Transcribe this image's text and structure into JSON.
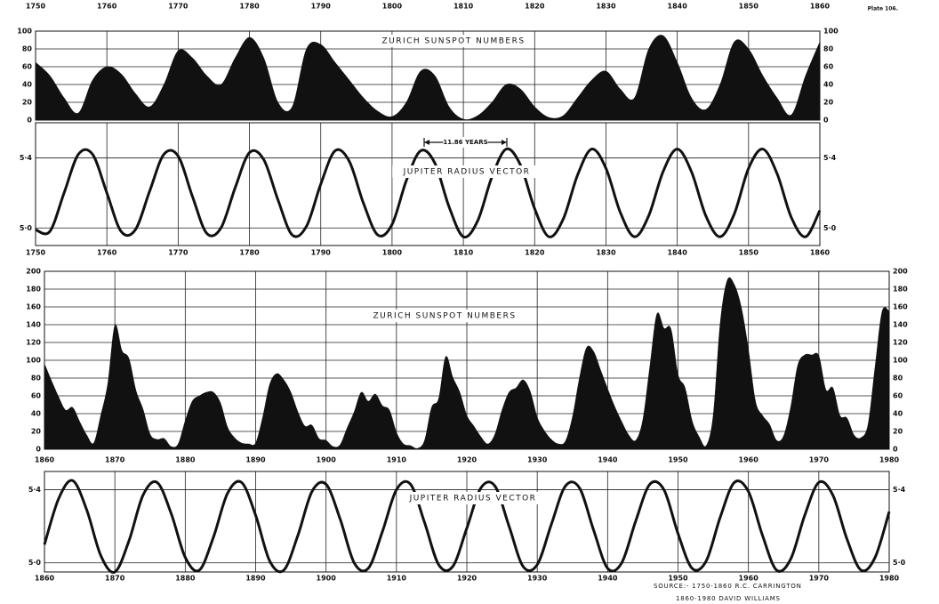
{
  "plate": "Plate 106.",
  "source_lines": [
    "SOURCE:- 1750-1860 R.C. CARRINGTON",
    "1860-1980 DAVID WILLIAMS"
  ],
  "chart_data": [
    {
      "type": "area",
      "title": "ZURICH SUNSPOT NUMBERS",
      "color": "#111111",
      "grid": true,
      "x": [
        1750,
        1752,
        1754,
        1756,
        1758,
        1760,
        1762,
        1764,
        1766,
        1768,
        1770,
        1772,
        1774,
        1776,
        1778,
        1780,
        1782,
        1784,
        1786,
        1788,
        1790,
        1792,
        1794,
        1796,
        1798,
        1800,
        1802,
        1804,
        1806,
        1808,
        1810,
        1812,
        1814,
        1816,
        1818,
        1820,
        1822,
        1824,
        1826,
        1828,
        1830,
        1832,
        1834,
        1836,
        1838,
        1840,
        1842,
        1844,
        1846,
        1848,
        1850,
        1852,
        1854,
        1856,
        1858,
        1860
      ],
      "values": [
        65,
        50,
        25,
        8,
        45,
        60,
        52,
        30,
        15,
        40,
        78,
        70,
        50,
        40,
        70,
        93,
        70,
        20,
        15,
        80,
        85,
        65,
        45,
        25,
        10,
        4,
        20,
        55,
        50,
        15,
        1,
        5,
        20,
        40,
        35,
        15,
        3,
        5,
        25,
        45,
        55,
        35,
        25,
        80,
        95,
        65,
        25,
        12,
        40,
        88,
        80,
        50,
        25,
        6,
        50,
        88
      ],
      "xlim": [
        1750,
        1860
      ],
      "xticks": [
        1750,
        1760,
        1770,
        1780,
        1790,
        1800,
        1810,
        1820,
        1830,
        1840,
        1850,
        1860
      ],
      "ylim": [
        0,
        100
      ],
      "yticks": [
        0,
        20,
        40,
        60,
        80,
        100
      ]
    },
    {
      "type": "line",
      "title": "JUPITER RADIUS VECTOR",
      "annotation": "11.86 YEARS",
      "color": "#111111",
      "grid": true,
      "x": [
        1750,
        1752,
        1754,
        1756,
        1758,
        1760,
        1762,
        1764,
        1766,
        1768,
        1770,
        1772,
        1774,
        1776,
        1778,
        1780,
        1782,
        1784,
        1786,
        1788,
        1790,
        1792,
        1794,
        1796,
        1798,
        1800,
        1802,
        1804,
        1806,
        1808,
        1810,
        1812,
        1814,
        1816,
        1818,
        1820,
        1822,
        1824,
        1826,
        1828,
        1830,
        1832,
        1834,
        1836,
        1838,
        1840,
        1842,
        1844,
        1846,
        1848,
        1850,
        1852,
        1854,
        1856,
        1858,
        1860
      ],
      "values": [
        4.99,
        4.98,
        5.2,
        5.42,
        5.42,
        5.2,
        4.98,
        4.99,
        5.21,
        5.42,
        5.41,
        5.18,
        4.97,
        5.0,
        5.23,
        5.43,
        5.39,
        5.16,
        4.96,
        5.01,
        5.25,
        5.44,
        5.38,
        5.14,
        4.96,
        5.02,
        5.27,
        5.44,
        5.37,
        5.12,
        4.95,
        5.04,
        5.29,
        5.45,
        5.36,
        5.11,
        4.95,
        5.05,
        5.3,
        5.45,
        5.34,
        5.09,
        4.95,
        5.07,
        5.32,
        5.45,
        5.32,
        5.07,
        4.95,
        5.08,
        5.34,
        5.45,
        5.31,
        5.06,
        4.95,
        5.1
      ],
      "xlim": [
        1750,
        1860
      ],
      "xticks": [
        1750,
        1760,
        1770,
        1780,
        1790,
        1800,
        1810,
        1820,
        1830,
        1840,
        1850,
        1860
      ],
      "ylim": [
        4.9,
        5.6
      ],
      "yticks": [
        {
          "value": 5.0,
          "label": "5·0"
        },
        {
          "value": 5.4,
          "label": "5·4"
        }
      ]
    },
    {
      "type": "area",
      "title": "ZURICH SUNSPOT NUMBERS",
      "color": "#111111",
      "grid": true,
      "x": [
        1860,
        1861,
        1862,
        1863,
        1864,
        1865,
        1866,
        1867,
        1868,
        1869,
        1870,
        1871,
        1872,
        1873,
        1874,
        1875,
        1876,
        1877,
        1878,
        1879,
        1880,
        1881,
        1882,
        1883,
        1884,
        1885,
        1886,
        1887,
        1888,
        1889,
        1890,
        1891,
        1892,
        1893,
        1894,
        1895,
        1896,
        1897,
        1898,
        1899,
        1900,
        1901,
        1902,
        1903,
        1904,
        1905,
        1906,
        1907,
        1908,
        1909,
        1910,
        1911,
        1912,
        1913,
        1914,
        1915,
        1916,
        1917,
        1918,
        1919,
        1920,
        1921,
        1922,
        1923,
        1924,
        1925,
        1926,
        1927,
        1928,
        1929,
        1930,
        1931,
        1932,
        1933,
        1934,
        1935,
        1936,
        1937,
        1938,
        1939,
        1940,
        1941,
        1942,
        1943,
        1944,
        1945,
        1946,
        1947,
        1948,
        1949,
        1950,
        1951,
        1952,
        1953,
        1954,
        1955,
        1956,
        1957,
        1958,
        1959,
        1960,
        1961,
        1962,
        1963,
        1964,
        1965,
        1966,
        1967,
        1968,
        1969,
        1970,
        1971,
        1972,
        1973,
        1974,
        1975,
        1976,
        1977,
        1978,
        1979,
        1980
      ],
      "values": [
        96,
        77,
        59,
        44,
        47,
        31,
        16,
        7,
        38,
        74,
        139,
        111,
        102,
        66,
        45,
        17,
        11,
        12,
        3,
        6,
        32,
        54,
        60,
        64,
        64,
        52,
        25,
        13,
        7,
        6,
        7,
        36,
        73,
        85,
        78,
        64,
        42,
        26,
        27,
        12,
        10,
        3,
        5,
        24,
        42,
        64,
        54,
        62,
        49,
        44,
        19,
        6,
        4,
        1,
        10,
        47,
        57,
        104,
        81,
        64,
        38,
        26,
        14,
        6,
        17,
        44,
        64,
        69,
        78,
        65,
        36,
        21,
        11,
        6,
        9,
        36,
        80,
        114,
        110,
        89,
        68,
        48,
        31,
        16,
        10,
        33,
        93,
        152,
        136,
        135,
        84,
        69,
        32,
        14,
        4,
        38,
        142,
        190,
        185,
        159,
        112,
        54,
        38,
        28,
        10,
        15,
        47,
        94,
        106,
        106,
        105,
        67,
        69,
        38,
        35,
        16,
        13,
        28,
        93,
        155,
        155
      ],
      "xlim": [
        1860,
        1980
      ],
      "xticks": [
        1860,
        1870,
        1880,
        1890,
        1900,
        1910,
        1920,
        1930,
        1940,
        1950,
        1960,
        1970,
        1980
      ],
      "ylim": [
        0,
        200
      ],
      "yticks": [
        0,
        20,
        40,
        60,
        80,
        100,
        120,
        140,
        160,
        180,
        200
      ]
    },
    {
      "type": "line",
      "title": "JUPITER RADIUS VECTOR",
      "color": "#111111",
      "grid": true,
      "x": [
        1860,
        1862,
        1864,
        1866,
        1868,
        1870,
        1872,
        1874,
        1876,
        1878,
        1880,
        1882,
        1884,
        1886,
        1888,
        1890,
        1892,
        1894,
        1896,
        1898,
        1900,
        1902,
        1904,
        1906,
        1908,
        1910,
        1912,
        1914,
        1916,
        1918,
        1920,
        1922,
        1924,
        1926,
        1928,
        1930,
        1932,
        1934,
        1936,
        1938,
        1940,
        1942,
        1944,
        1946,
        1948,
        1950,
        1952,
        1954,
        1956,
        1958,
        1960,
        1962,
        1964,
        1966,
        1968,
        1970,
        1972,
        1974,
        1976,
        1978,
        1980
      ],
      "values": [
        5.1,
        5.35,
        5.45,
        5.29,
        5.04,
        4.95,
        5.12,
        5.37,
        5.44,
        5.27,
        5.03,
        4.96,
        5.14,
        5.38,
        5.44,
        5.26,
        5.01,
        4.96,
        5.15,
        5.39,
        5.43,
        5.24,
        5.0,
        4.97,
        5.17,
        5.4,
        5.43,
        5.22,
        4.99,
        4.98,
        5.19,
        5.41,
        5.42,
        5.2,
        4.98,
        4.99,
        5.21,
        5.42,
        5.41,
        5.18,
        4.97,
        5.0,
        5.23,
        5.43,
        5.4,
        5.16,
        4.97,
        5.01,
        5.25,
        5.44,
        5.39,
        5.15,
        4.96,
        5.02,
        5.26,
        5.44,
        5.37,
        5.13,
        4.96,
        5.03,
        5.28
      ],
      "xlim": [
        1860,
        1980
      ],
      "xticks": [
        1860,
        1870,
        1880,
        1890,
        1900,
        1910,
        1920,
        1930,
        1940,
        1950,
        1960,
        1970,
        1980
      ],
      "ylim": [
        4.95,
        5.5
      ],
      "yticks": [
        {
          "value": 5.0,
          "label": "5·0"
        },
        {
          "value": 5.4,
          "label": "5·4"
        }
      ]
    }
  ]
}
